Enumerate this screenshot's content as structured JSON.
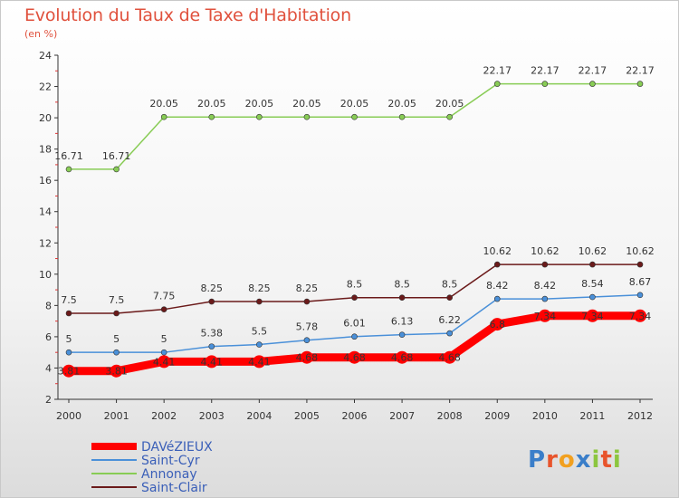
{
  "title": "Evolution du Taux de Taxe d'Habitation",
  "subtitle": "(en %)",
  "logo": {
    "text": "Proxiti",
    "letters": [
      "P",
      "r",
      "o",
      "x",
      "i",
      "t",
      "i"
    ],
    "colors": [
      "#3a7ec9",
      "#e8542c",
      "#f2a01f",
      "#3a7ec9",
      "#8cc63f",
      "#e8542c",
      "#8cc63f"
    ]
  },
  "chart_data": {
    "type": "line",
    "title": "Evolution du Taux de Taxe d'Habitation",
    "ylabel": "(en %)",
    "xlabel": "",
    "x": [
      "2000",
      "2001",
      "2002",
      "2003",
      "2004",
      "2005",
      "2006",
      "2007",
      "2008",
      "2009",
      "2010",
      "2011",
      "2012"
    ],
    "ylim": [
      2,
      24
    ],
    "yticks": [
      "2",
      "4",
      "6",
      "8",
      "10",
      "12",
      "14",
      "16",
      "18",
      "20",
      "22",
      "24"
    ],
    "grid": false,
    "legend_position": "bottom-left",
    "series": [
      {
        "name": "DAVéZIEUX",
        "color": "#ff0000",
        "emphasis": true,
        "values": [
          3.81,
          3.81,
          4.41,
          4.41,
          4.41,
          4.68,
          4.68,
          4.68,
          4.68,
          6.8,
          7.34,
          7.34,
          7.34
        ],
        "labels": [
          "3.81",
          "3.81",
          "4.41",
          "4.41",
          "4.41",
          "4.68",
          "4.68",
          "4.68",
          "4.68",
          "6.8",
          "7.34",
          "7.34",
          "7.34"
        ]
      },
      {
        "name": "Saint-Cyr",
        "color": "#4a90d9",
        "values": [
          5,
          5,
          5,
          5.38,
          5.5,
          5.78,
          6.01,
          6.13,
          6.22,
          8.42,
          8.42,
          8.54,
          8.67
        ],
        "labels": [
          "5",
          "5",
          "5",
          "5.38",
          "5.5",
          "5.78",
          "6.01",
          "6.13",
          "6.22",
          "8.42",
          "8.42",
          "8.54",
          "8.67"
        ]
      },
      {
        "name": "Annonay",
        "color": "#88cc55",
        "values": [
          16.71,
          16.71,
          20.05,
          20.05,
          20.05,
          20.05,
          20.05,
          20.05,
          20.05,
          22.17,
          22.17,
          22.17,
          22.17
        ],
        "labels": [
          "16.71",
          "16.71",
          "20.05",
          "20.05",
          "20.05",
          "20.05",
          "20.05",
          "20.05",
          "20.05",
          "22.17",
          "22.17",
          "22.17",
          "22.17"
        ]
      },
      {
        "name": "Saint-Clair",
        "color": "#6b1a1a",
        "values": [
          7.5,
          7.5,
          7.75,
          8.25,
          8.25,
          8.25,
          8.5,
          8.5,
          8.5,
          10.62,
          10.62,
          10.62,
          10.62
        ],
        "labels": [
          "7.5",
          "7.5",
          "7.75",
          "8.25",
          "8.25",
          "8.25",
          "8.5",
          "8.5",
          "8.5",
          "10.62",
          "10.62",
          "10.62",
          "10.62"
        ]
      }
    ]
  }
}
